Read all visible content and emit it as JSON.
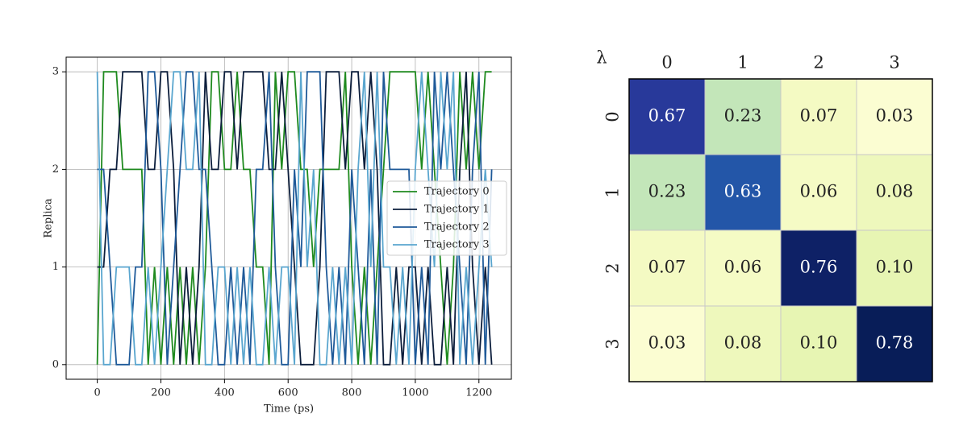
{
  "chart_data": [
    {
      "type": "line",
      "xlabel": "Time (ps)",
      "ylabel": "Replica",
      "x": [
        0,
        20,
        40,
        60,
        80,
        100,
        120,
        140,
        160,
        180,
        200,
        220,
        240,
        260,
        280,
        300,
        320,
        340,
        360,
        380,
        400,
        420,
        440,
        460,
        480,
        500,
        520,
        540,
        560,
        580,
        600,
        620,
        640,
        660,
        680,
        700,
        720,
        740,
        760,
        780,
        800,
        820,
        840,
        860,
        880,
        900,
        920,
        940,
        960,
        980,
        1000,
        1020,
        1040,
        1060,
        1080,
        1100,
        1120,
        1140,
        1160,
        1180,
        1200,
        1220,
        1240
      ],
      "series": [
        {
          "name": "Trajectory 0",
          "color": "#1f8a1f",
          "values": [
            0,
            3,
            3,
            3,
            2,
            2,
            2,
            2,
            0,
            1,
            0,
            1,
            0,
            1,
            0,
            1,
            0,
            1,
            3,
            3,
            2,
            2,
            3,
            2,
            2,
            1,
            1,
            0,
            3,
            2,
            3,
            3,
            2,
            2,
            1,
            2,
            2,
            2,
            2,
            3,
            1,
            0,
            1,
            0,
            1,
            2,
            3,
            3,
            3,
            3,
            3,
            2,
            3,
            2,
            1,
            0,
            1,
            3,
            2,
            3,
            2,
            3,
            3
          ]
        },
        {
          "name": "Trajectory 1",
          "color": "#0c1e3c",
          "values": [
            1,
            1,
            2,
            2,
            3,
            3,
            3,
            3,
            2,
            2,
            3,
            3,
            2,
            0,
            1,
            0,
            1,
            3,
            2,
            2,
            3,
            3,
            2,
            3,
            3,
            3,
            3,
            2,
            2,
            3,
            2,
            1,
            0,
            0,
            0,
            1,
            3,
            3,
            3,
            2,
            3,
            3,
            2,
            3,
            2,
            0,
            0,
            1,
            0,
            1,
            1,
            0,
            1,
            0,
            0,
            1,
            0,
            2,
            3,
            1,
            0,
            1,
            0
          ]
        },
        {
          "name": "Trajectory 2",
          "color": "#1f5a99",
          "values": [
            2,
            2,
            1,
            0,
            0,
            0,
            1,
            1,
            3,
            3,
            2,
            0,
            1,
            2,
            3,
            3,
            2,
            2,
            1,
            0,
            0,
            1,
            0,
            1,
            0,
            2,
            2,
            3,
            1,
            0,
            0,
            2,
            1,
            3,
            3,
            3,
            1,
            0,
            1,
            0,
            2,
            1,
            0,
            2,
            0,
            3,
            2,
            2,
            2,
            2,
            0,
            1,
            0,
            3,
            2,
            3,
            2,
            1,
            0,
            2,
            3,
            0,
            2
          ]
        },
        {
          "name": "Trajectory 3",
          "color": "#5aa6cf",
          "values": [
            3,
            0,
            0,
            1,
            1,
            1,
            0,
            0,
            1,
            0,
            1,
            2,
            3,
            3,
            2,
            2,
            3,
            0,
            0,
            1,
            1,
            0,
            1,
            0,
            1,
            0,
            0,
            1,
            0,
            1,
            1,
            0,
            3,
            1,
            2,
            0,
            0,
            1,
            0,
            1,
            0,
            2,
            3,
            1,
            3,
            1,
            1,
            0,
            1,
            0,
            2,
            3,
            2,
            1,
            3,
            2,
            3,
            0,
            1,
            0,
            1,
            2,
            1
          ]
        }
      ],
      "xlim": [
        -98,
        1302
      ],
      "ylim": [
        -0.15,
        3.15
      ],
      "xticks": [
        0,
        200,
        400,
        600,
        800,
        1000,
        1200
      ],
      "yticks": [
        0,
        1,
        2,
        3
      ],
      "grid": true,
      "legend": "center right"
    },
    {
      "type": "heatmap",
      "corner_label": "λ",
      "columns": [
        "0",
        "1",
        "2",
        "3"
      ],
      "rows": [
        "0",
        "1",
        "2",
        "3"
      ],
      "values": [
        [
          0.67,
          0.23,
          0.07,
          0.03
        ],
        [
          0.23,
          0.63,
          0.06,
          0.08
        ],
        [
          0.07,
          0.06,
          0.76,
          0.1
        ],
        [
          0.03,
          0.08,
          0.1,
          0.78
        ]
      ],
      "value_labels": [
        [
          "0.67",
          "0.23",
          "0.07",
          "0.03"
        ],
        [
          "0.23",
          "0.63",
          "0.06",
          "0.08"
        ],
        [
          "0.07",
          "0.06",
          "0.76",
          "0.10"
        ],
        [
          "0.03",
          "0.08",
          "0.10",
          "0.78"
        ]
      ],
      "colors": [
        [
          "#28399a",
          "#c3e6b9",
          "#f4fac3",
          "#fbfdd2"
        ],
        [
          "#c3e6b9",
          "#2356a8",
          "#f5fbc5",
          "#eef8bc"
        ],
        [
          "#f4fac3",
          "#f5fbc5",
          "#0e2166",
          "#e7f5b3"
        ],
        [
          "#fbfdd2",
          "#eef8bc",
          "#e7f5b3",
          "#081d58"
        ]
      ]
    }
  ]
}
